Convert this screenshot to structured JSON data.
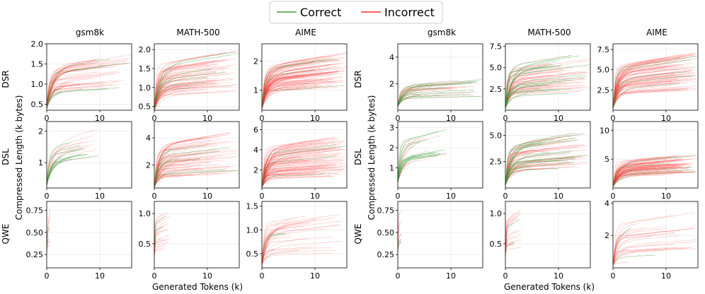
{
  "legend": {
    "entries": [
      {
        "label": "Correct",
        "color": "#3a9d3a"
      },
      {
        "label": "Incorrect",
        "color": "#ff2a2a"
      }
    ],
    "placement": "top-center"
  },
  "labels": {
    "ylabel_left": "Compressed Length (k bytes)",
    "ylabel_right": "Compressed Length (k bytes)",
    "xlabel_left": "Generated Tokens (k)",
    "xlabel_right": "Generated Tokens (k)"
  },
  "datasets": [
    "gsm8k",
    "MATH-500",
    "AIME"
  ],
  "models": [
    "DSR",
    "DSL",
    "QWE"
  ],
  "chart_data": [
    {
      "type": "line",
      "group": "left",
      "dataset": "gsm8k",
      "model": "DSR",
      "xlim": [
        0,
        16
      ],
      "ylim": [
        0.35,
        2.0
      ],
      "xticks": [
        0,
        10
      ],
      "yticks": [
        0.5,
        1.0,
        1.5,
        2.0
      ],
      "ytick_labels": [
        "0.5",
        "1.0",
        "1.5",
        "2.0"
      ],
      "x_end_range": [
        0.8,
        16
      ],
      "y_plateau_range": [
        0.9,
        1.75
      ],
      "n_incorrect": 45,
      "n_correct": 8,
      "y_start": 0.45,
      "trend": "sharp rise then slow growth"
    },
    {
      "type": "line",
      "group": "left",
      "dataset": "MATH-500",
      "model": "DSR",
      "xlim": [
        0,
        16
      ],
      "ylim": [
        0.4,
        2.15
      ],
      "xticks": [
        0,
        10
      ],
      "yticks": [
        0.5,
        1.0,
        1.5,
        2.0
      ],
      "ytick_labels": [
        "0.5",
        "1.0",
        "1.5",
        "2.0"
      ],
      "x_end_range": [
        2,
        16
      ],
      "y_plateau_range": [
        0.9,
        2.0
      ],
      "n_incorrect": 60,
      "n_correct": 8,
      "y_start": 0.45,
      "trend": "sharp rise then slow growth"
    },
    {
      "type": "line",
      "group": "left",
      "dataset": "AIME",
      "model": "DSR",
      "xlim": [
        0,
        16
      ],
      "ylim": [
        0.3,
        2.6
      ],
      "xticks": [
        0,
        10
      ],
      "yticks": [
        1,
        2
      ],
      "ytick_labels": [
        "1",
        "2"
      ],
      "x_end_range": [
        6,
        16
      ],
      "y_plateau_range": [
        1.1,
        2.3
      ],
      "n_incorrect": 80,
      "n_correct": 4,
      "y_start": 0.4,
      "trend": "sharp rise then slow growth"
    },
    {
      "type": "line",
      "group": "left",
      "dataset": "gsm8k",
      "model": "DSL",
      "xlim": [
        0,
        16
      ],
      "ylim": [
        0.2,
        2.3
      ],
      "xticks": [
        0,
        10
      ],
      "yticks": [
        1,
        2
      ],
      "ytick_labels": [
        "1",
        "2"
      ],
      "x_end_range": [
        0.8,
        10
      ],
      "y_plateau_range": [
        1.2,
        2.1
      ],
      "n_incorrect": 10,
      "n_correct": 12,
      "y_start": 0.3,
      "trend": "steep rise"
    },
    {
      "type": "line",
      "group": "left",
      "dataset": "MATH-500",
      "model": "DSL",
      "xlim": [
        0,
        16
      ],
      "ylim": [
        0.3,
        5.2
      ],
      "xticks": [
        0,
        10
      ],
      "yticks": [
        2,
        4
      ],
      "ytick_labels": [
        "2",
        "4"
      ],
      "x_end_range": [
        2,
        16
      ],
      "y_plateau_range": [
        1.3,
        4.5
      ],
      "n_incorrect": 60,
      "n_correct": 8,
      "y_start": 0.4,
      "trend": "sharp rise then slow growth"
    },
    {
      "type": "line",
      "group": "left",
      "dataset": "AIME",
      "model": "DSL",
      "xlim": [
        0,
        16
      ],
      "ylim": [
        0.2,
        6.8
      ],
      "xticks": [
        0,
        10
      ],
      "yticks": [
        2,
        4,
        6
      ],
      "ytick_labels": [
        "2",
        "4",
        "6"
      ],
      "x_end_range": [
        6,
        16
      ],
      "y_plateau_range": [
        1.3,
        5.5
      ],
      "n_incorrect": 80,
      "n_correct": 4,
      "y_start": 0.3,
      "trend": "sharp rise then slow growth"
    },
    {
      "type": "line",
      "group": "left",
      "dataset": "gsm8k",
      "model": "QWE",
      "xlim": [
        0,
        16
      ],
      "ylim": [
        0.1,
        0.85
      ],
      "xticks": [
        0,
        10
      ],
      "yticks": [
        0.25,
        0.5,
        0.75
      ],
      "ytick_labels": [
        "0.25",
        "0.50",
        "0.75"
      ],
      "x_end_range": [
        0.2,
        0.7
      ],
      "y_plateau_range": [
        0.35,
        0.8
      ],
      "n_incorrect": 8,
      "n_correct": 2,
      "y_start": 0.3,
      "trend": "very short steep segments"
    },
    {
      "type": "line",
      "group": "left",
      "dataset": "MATH-500",
      "model": "QWE",
      "xlim": [
        0,
        16
      ],
      "ylim": [
        0.1,
        1.2
      ],
      "xticks": [
        0,
        10
      ],
      "yticks": [
        0.5,
        1.0
      ],
      "ytick_labels": [
        "0.5",
        "1.0"
      ],
      "x_end_range": [
        0.5,
        3
      ],
      "y_plateau_range": [
        0.4,
        1.1
      ],
      "n_incorrect": 18,
      "n_correct": 2,
      "y_start": 0.3,
      "trend": "very short steep segments"
    },
    {
      "type": "line",
      "group": "left",
      "dataset": "AIME",
      "model": "QWE",
      "xlim": [
        0,
        16
      ],
      "ylim": [
        0.2,
        1.6
      ],
      "xticks": [
        0,
        10
      ],
      "yticks": [
        0.5,
        1.0,
        1.5
      ],
      "ytick_labels": [
        "0.5",
        "1.0",
        "1.5"
      ],
      "x_end_range": [
        0.5,
        16
      ],
      "y_plateau_range": [
        0.5,
        1.5
      ],
      "n_incorrect": 30,
      "n_correct": 2,
      "y_start": 0.3,
      "trend": "short steep segments, some long tails"
    },
    {
      "type": "line",
      "group": "right",
      "dataset": "gsm8k",
      "model": "DSR",
      "xlim": [
        0,
        16
      ],
      "ylim": [
        0,
        5.0
      ],
      "xticks": [
        0,
        10
      ],
      "yticks": [
        2,
        4
      ],
      "ytick_labels": [
        "2",
        "4"
      ],
      "x_end_range": [
        1,
        16
      ],
      "y_plateau_range": [
        1.0,
        2.5
      ],
      "n_incorrect": 20,
      "n_correct": 14,
      "y_start": 0.3,
      "trend": "steep rise then plateau"
    },
    {
      "type": "line",
      "group": "right",
      "dataset": "MATH-500",
      "model": "DSR",
      "xlim": [
        0,
        16
      ],
      "ylim": [
        0,
        7.8
      ],
      "xticks": [
        0,
        10
      ],
      "yticks": [
        2.5,
        5.0,
        7.5
      ],
      "ytick_labels": [
        "2.5",
        "5.0",
        "7.5"
      ],
      "x_end_range": [
        3,
        16
      ],
      "y_plateau_range": [
        2.0,
        7.0
      ],
      "n_incorrect": 45,
      "n_correct": 20,
      "y_start": 0.3,
      "trend": "steady growth"
    },
    {
      "type": "line",
      "group": "right",
      "dataset": "AIME",
      "model": "DSR",
      "xlim": [
        0,
        16
      ],
      "ylim": [
        0,
        8.2
      ],
      "xticks": [
        0,
        10
      ],
      "yticks": [
        2.5,
        5.0,
        7.5
      ],
      "ytick_labels": [
        "2.5",
        "5.0",
        "7.5"
      ],
      "x_end_range": [
        8,
        16
      ],
      "y_plateau_range": [
        2.5,
        7.2
      ],
      "n_incorrect": 70,
      "n_correct": 5,
      "y_start": 0.3,
      "trend": "steady growth"
    },
    {
      "type": "line",
      "group": "right",
      "dataset": "gsm8k",
      "model": "DSL",
      "xlim": [
        0,
        16
      ],
      "ylim": [
        0,
        3.3
      ],
      "xticks": [
        0,
        10
      ],
      "yticks": [
        1,
        2,
        3
      ],
      "ytick_labels": [
        "1",
        "2",
        "3"
      ],
      "x_end_range": [
        1,
        10
      ],
      "y_plateau_range": [
        1.5,
        3.0
      ],
      "n_incorrect": 10,
      "n_correct": 14,
      "y_start": 0.3,
      "trend": "steep rise"
    },
    {
      "type": "line",
      "group": "right",
      "dataset": "MATH-500",
      "model": "DSL",
      "xlim": [
        0,
        16
      ],
      "ylim": [
        0,
        6.3
      ],
      "xticks": [
        0,
        10
      ],
      "yticks": [
        2.5,
        5.0
      ],
      "ytick_labels": [
        "2.5",
        "5.0"
      ],
      "x_end_range": [
        3,
        16
      ],
      "y_plateau_range": [
        2.0,
        5.5
      ],
      "n_incorrect": 45,
      "n_correct": 20,
      "y_start": 0.3,
      "trend": "steady growth"
    },
    {
      "type": "line",
      "group": "right",
      "dataset": "AIME",
      "model": "DSL",
      "xlim": [
        0,
        16
      ],
      "ylim": [
        0,
        11.5
      ],
      "xticks": [
        0,
        10
      ],
      "yticks": [
        5,
        10
      ],
      "ytick_labels": [
        "5",
        "10"
      ],
      "x_end_range": [
        6,
        16
      ],
      "y_plateau_range": [
        2.5,
        6.0
      ],
      "n_incorrect": 70,
      "n_correct": 5,
      "y_start": 0.3,
      "trend": "rise then plateau"
    },
    {
      "type": "line",
      "group": "right",
      "dataset": "gsm8k",
      "model": "QWE",
      "xlim": [
        0,
        16
      ],
      "ylim": [
        0.1,
        0.85
      ],
      "xticks": [
        0,
        10
      ],
      "yticks": [
        0.25,
        0.5,
        0.75
      ],
      "ytick_labels": [
        "0.25",
        "0.50",
        "0.75"
      ],
      "x_end_range": [
        0.2,
        0.7
      ],
      "y_plateau_range": [
        0.35,
        0.8
      ],
      "n_incorrect": 8,
      "n_correct": 2,
      "y_start": 0.3,
      "trend": "very short steep segments"
    },
    {
      "type": "line",
      "group": "right",
      "dataset": "MATH-500",
      "model": "QWE",
      "xlim": [
        0,
        16
      ],
      "ylim": [
        0.1,
        1.2
      ],
      "xticks": [
        0,
        10
      ],
      "yticks": [
        0.5,
        1.0
      ],
      "ytick_labels": [
        "0.5",
        "1.0"
      ],
      "x_end_range": [
        0.5,
        3
      ],
      "y_plateau_range": [
        0.4,
        1.1
      ],
      "n_incorrect": 18,
      "n_correct": 2,
      "y_start": 0.3,
      "trend": "very short steep segments"
    },
    {
      "type": "line",
      "group": "right",
      "dataset": "AIME",
      "model": "QWE",
      "xlim": [
        0,
        16
      ],
      "ylim": [
        0,
        4.1
      ],
      "xticks": [
        0,
        10
      ],
      "yticks": [
        2,
        4
      ],
      "ytick_labels": [
        "2",
        "4"
      ],
      "x_end_range": [
        0.5,
        16
      ],
      "y_plateau_range": [
        0.3,
        3.5
      ],
      "n_incorrect": 25,
      "n_correct": 2,
      "y_start": 0.2,
      "trend": "short steep segments, some long tails"
    }
  ]
}
